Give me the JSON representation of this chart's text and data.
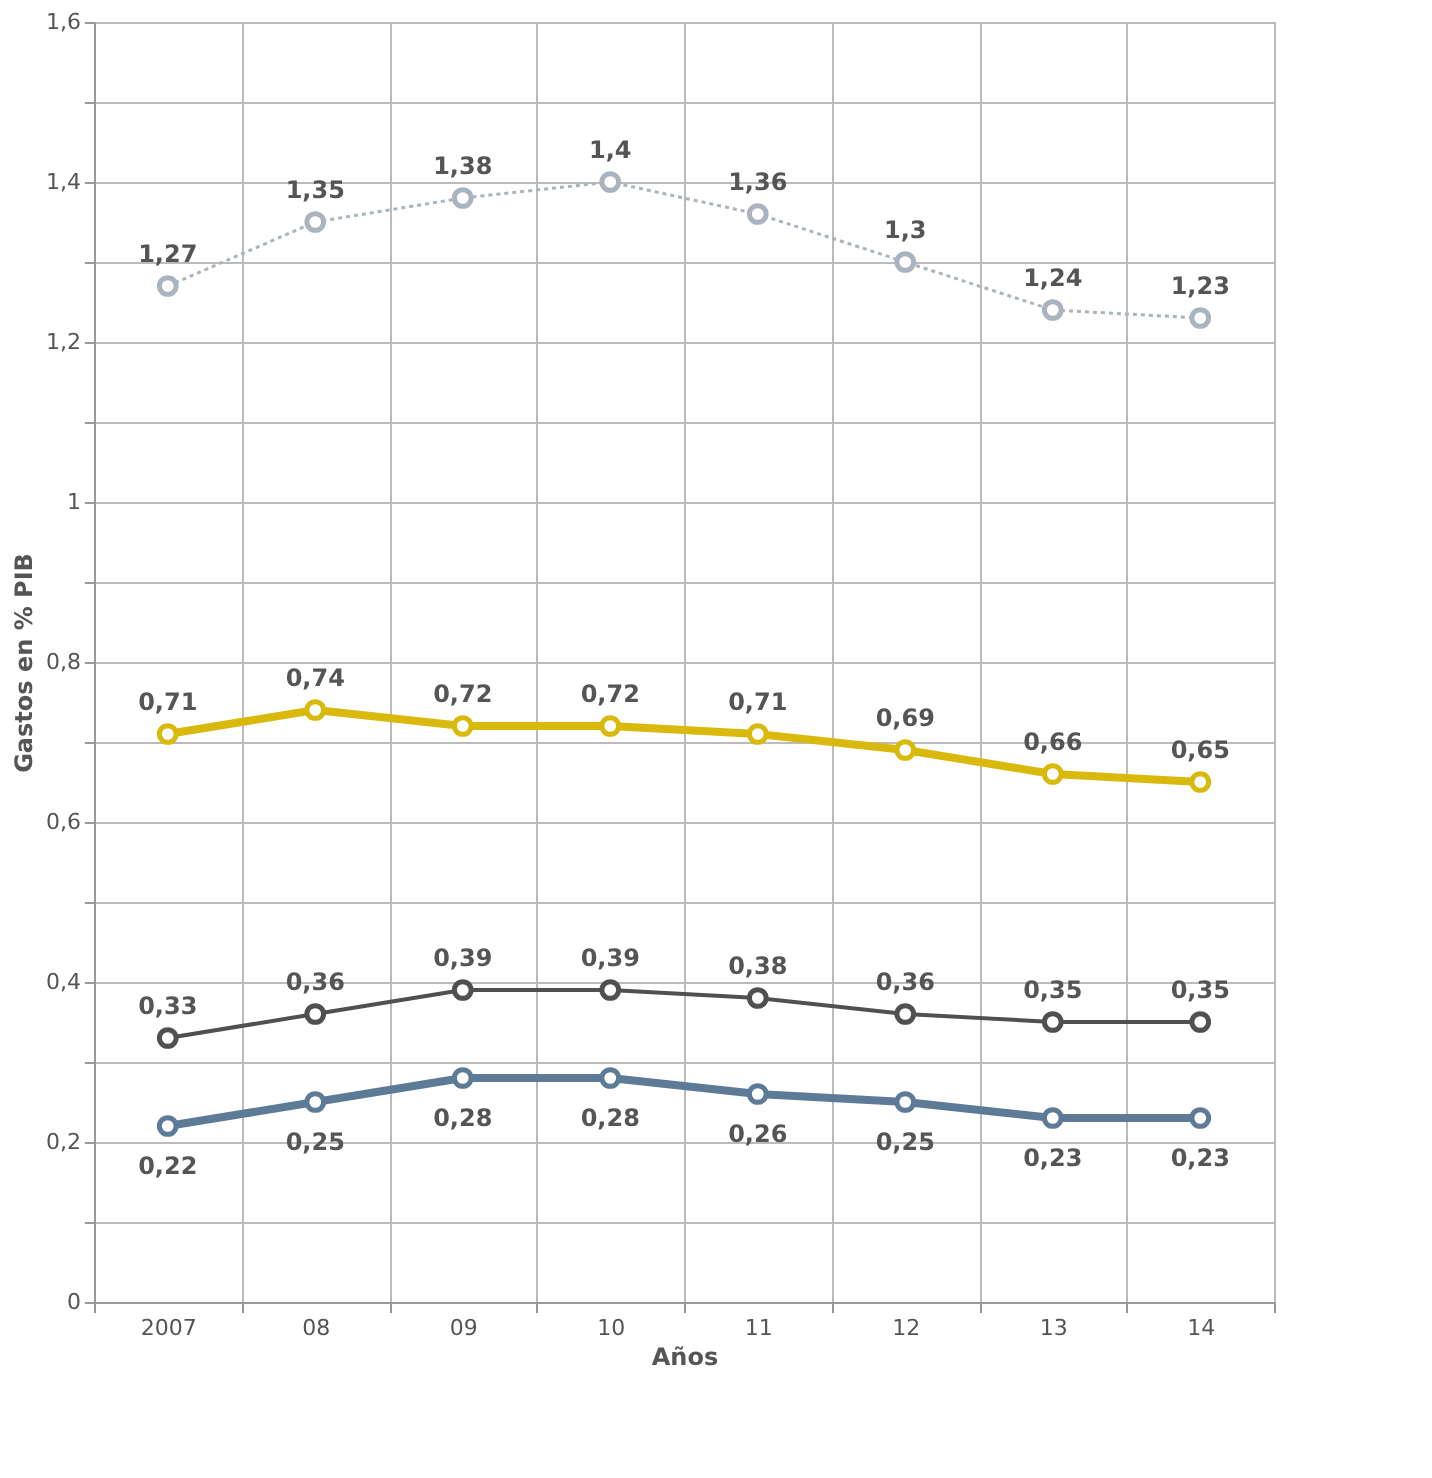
{
  "chart_data": {
    "type": "line",
    "xlabel": "Años",
    "ylabel": "Gastos en % PIB",
    "categories": [
      "2007",
      "08",
      "09",
      "10",
      "11",
      "12",
      "13",
      "14"
    ],
    "series": [
      {
        "color": "#aab4be",
        "line_style": "dotted",
        "values": [
          1.27,
          1.35,
          1.38,
          1.4,
          1.36,
          1.3,
          1.24,
          1.23
        ],
        "value_labels": [
          "1,27",
          "1,35",
          "1,38",
          "1,4",
          "1,36",
          "1,3",
          "1,24",
          "1,23"
        ]
      },
      {
        "color": "#d8b90c",
        "line_style": "solid",
        "values": [
          0.71,
          0.74,
          0.72,
          0.72,
          0.71,
          0.69,
          0.66,
          0.65
        ],
        "value_labels": [
          "0,71",
          "0,74",
          "0,72",
          "0,72",
          "0,71",
          "0,69",
          "0,66",
          "0,65"
        ]
      },
      {
        "color": "#505050",
        "line_style": "solid",
        "values": [
          0.33,
          0.36,
          0.39,
          0.39,
          0.38,
          0.36,
          0.35,
          0.35
        ],
        "value_labels": [
          "0,33",
          "0,36",
          "0,39",
          "0,39",
          "0,38",
          "0,36",
          "0,35",
          "0,35"
        ]
      },
      {
        "color": "#5d7b97",
        "line_style": "solid",
        "values": [
          0.22,
          0.25,
          0.28,
          0.28,
          0.26,
          0.25,
          0.23,
          0.23
        ],
        "value_labels": [
          "0,22",
          "0,25",
          "0,28",
          "0,28",
          "0,26",
          "0,25",
          "0,23",
          "0,23"
        ]
      }
    ],
    "ylim": [
      0,
      1.6
    ],
    "yticks": [
      0,
      {
        "value": 0.1,
        "label": null
      },
      {
        "value": 0.2,
        "label": "0,2"
      },
      {
        "value": 0.3,
        "label": null
      },
      {
        "value": 0.4,
        "label": "0,4"
      },
      {
        "value": 0.5,
        "label": null
      },
      {
        "value": 0.6,
        "label": "0,6"
      },
      {
        "value": 0.7,
        "label": null
      },
      {
        "value": 0.8,
        "label": "0,8"
      },
      {
        "value": 0.9,
        "label": null
      },
      1,
      {
        "value": 1.1,
        "label": null
      },
      {
        "value": 1.2,
        "label": "1,2"
      },
      {
        "value": 1.3,
        "label": null
      },
      {
        "value": 1.4,
        "label": "1,4"
      },
      {
        "value": 1.5,
        "label": null
      },
      {
        "value": 1.6,
        "label": "1,6"
      }
    ],
    "grid": true,
    "marker": "circle"
  }
}
